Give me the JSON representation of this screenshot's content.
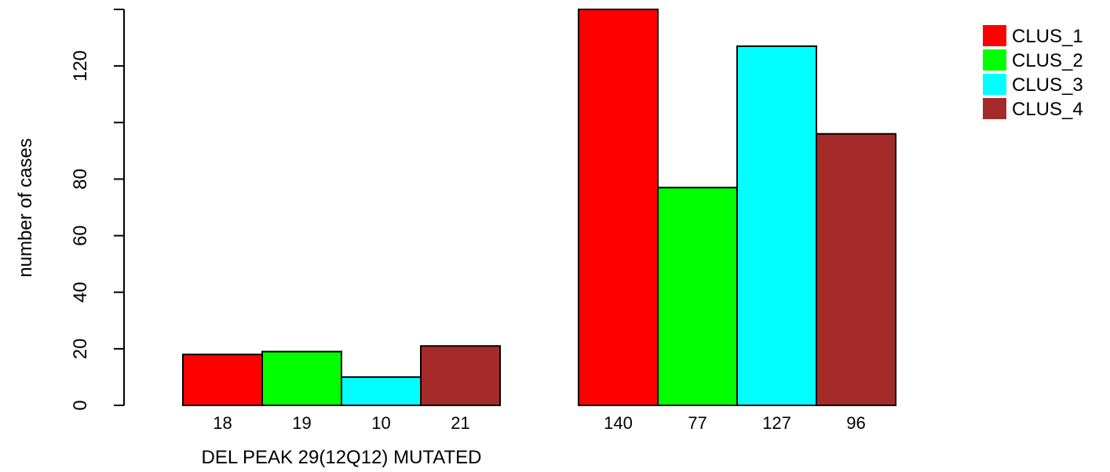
{
  "chart_data": {
    "type": "bar",
    "ylabel": "number of cases",
    "yticks": [
      0,
      20,
      40,
      60,
      80,
      100,
      120
    ],
    "ytick_labels": [
      "0",
      "20",
      "40",
      "60",
      "80",
      "",
      "120"
    ],
    "ylim": [
      0,
      140
    ],
    "groups": [
      {
        "label": "DEL PEAK 29(12Q12) MUTATED",
        "values": [
          18,
          19,
          10,
          21
        ],
        "value_labels": [
          "18",
          "19",
          "10",
          "21"
        ]
      },
      {
        "label": "",
        "values": [
          140,
          77,
          127,
          96
        ],
        "value_labels": [
          "140",
          "77",
          "127",
          "96"
        ]
      }
    ],
    "series": [
      {
        "name": "CLUS_1",
        "color": "#ff0000"
      },
      {
        "name": "CLUS_2",
        "color": "#00ff00"
      },
      {
        "name": "CLUS_3",
        "color": "#00ffff"
      },
      {
        "name": "CLUS_4",
        "color": "#a52a2a"
      }
    ],
    "legend": "top-right",
    "grid": false
  }
}
